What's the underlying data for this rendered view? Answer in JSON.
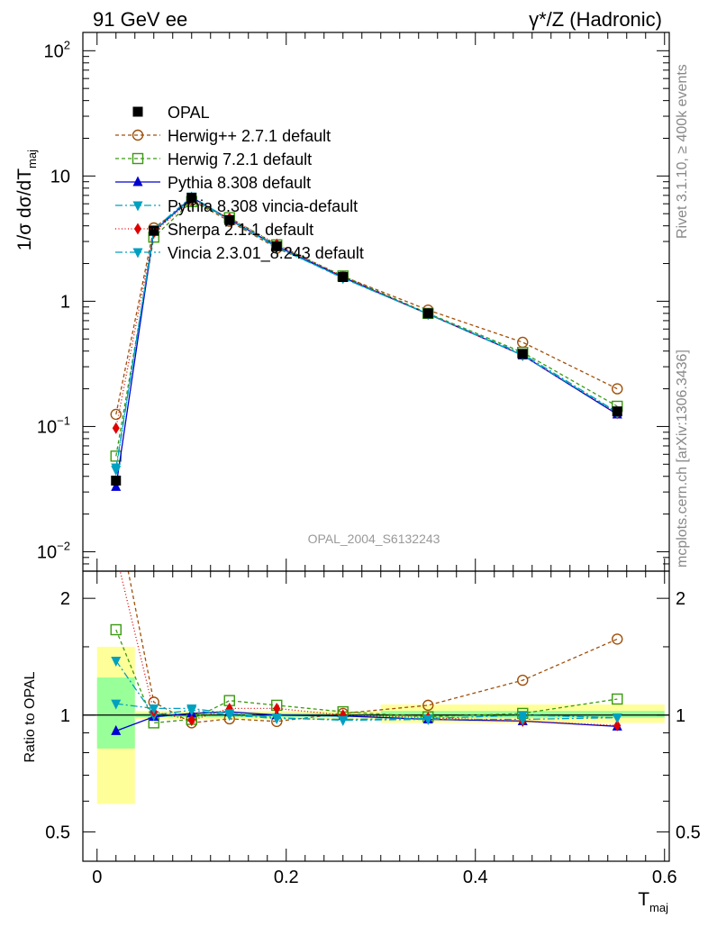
{
  "header": {
    "left_title": "91 GeV ee",
    "right_title": "γ*/Z (Hadronic)"
  },
  "side_labels": {
    "rivet": "Rivet 3.1.10, ≥ 400k events",
    "mcplots": "mcplots.cern.ch [arXiv:1306.3436]"
  },
  "watermark": "OPAL_2004_S6132243",
  "chart_data": [
    {
      "type": "line",
      "panel": "main",
      "yscale": "log",
      "ylabel": "1/σ dσ/dT",
      "ylabel_sub": "maj",
      "ylim": [
        0.007,
        140
      ],
      "xlim": [
        -0.015,
        0.605
      ],
      "ytick_labels": [
        {
          "value": 100,
          "base": "10",
          "exp": "2"
        },
        {
          "value": 10,
          "base": "10",
          "exp": ""
        },
        {
          "value": 1,
          "base": "1",
          "exp": ""
        },
        {
          "value": 0.1,
          "base": "10",
          "exp": "−1"
        },
        {
          "value": 0.01,
          "base": "10",
          "exp": "−2"
        }
      ],
      "x": [
        0.02,
        0.06,
        0.1,
        0.14,
        0.19,
        0.26,
        0.35,
        0.45,
        0.55
      ],
      "series": [
        {
          "name": "OPAL",
          "color": "#000000",
          "marker": "square-filled",
          "dash": "none",
          "values": [
            0.037,
            3.65,
            6.7,
            4.45,
            2.75,
            1.56,
            0.8,
            0.38,
            0.132
          ],
          "ratio": [
            1.0,
            1.0,
            1.0,
            1.0,
            1.0,
            1.0,
            1.0,
            1.0,
            1.0
          ]
        },
        {
          "name": "Herwig++ 2.7.1 default",
          "color": "#a0500a",
          "marker": "circle-open",
          "dash": "4,3",
          "values": [
            0.125,
            3.85,
            6.4,
            4.35,
            2.65,
            1.58,
            0.85,
            0.47,
            0.2
          ],
          "ratio": [
            3.4,
            1.08,
            0.955,
            0.978,
            0.963,
            1.01,
            1.06,
            1.23,
            1.57
          ]
        },
        {
          "name": "Herwig 7.2.1 default",
          "color": "#3a9a10",
          "marker": "square-open",
          "dash": "4,3",
          "values": [
            0.058,
            3.25,
            6.25,
            4.65,
            2.82,
            1.59,
            0.8,
            0.39,
            0.145
          ],
          "ratio": [
            1.66,
            0.955,
            0.975,
            1.09,
            1.06,
            1.02,
            0.99,
            1.01,
            1.1
          ]
        },
        {
          "name": "Pythia 8.308 default",
          "color": "#0000d0",
          "marker": "triangle-up",
          "dash": "none",
          "values": [
            0.033,
            3.62,
            6.75,
            4.5,
            2.75,
            1.55,
            0.79,
            0.37,
            0.125
          ],
          "ratio": [
            0.91,
            0.99,
            1.01,
            1.02,
            1.0,
            0.995,
            0.975,
            0.965,
            0.935
          ]
        },
        {
          "name": "Pythia 8.308 vincia-default",
          "color": "#00a0c0",
          "marker": "triangle-down",
          "dash": "8,3,2,3",
          "values": [
            0.047,
            3.6,
            6.65,
            4.45,
            2.7,
            1.53,
            0.79,
            0.38,
            0.13
          ],
          "ratio": [
            1.38,
            1.0,
            1.03,
            1.0,
            0.98,
            0.975,
            0.98,
            1.0,
            0.985
          ]
        },
        {
          "name": "Sherpa 2.1.1 default",
          "color": "#e00000",
          "marker": "diamond",
          "dash": "1,2.5",
          "values": [
            0.097,
            3.55,
            6.5,
            4.6,
            2.85,
            1.57,
            0.79,
            0.37,
            0.127
          ],
          "ratio": [
            2.6,
            1.02,
            0.97,
            1.04,
            1.04,
            1.0,
            0.985,
            0.965,
            0.94
          ]
        },
        {
          "name": "Vincia 2.3.01_8.243 default",
          "color": "#00a0c0",
          "marker": "triangle-down",
          "dash": "8,3,2,3",
          "values": [
            0.045,
            3.75,
            6.85,
            4.5,
            2.72,
            1.53,
            0.79,
            0.37,
            0.128
          ],
          "ratio": [
            1.07,
            1.04,
            1.04,
            1.01,
            0.985,
            0.97,
            0.975,
            0.975,
            0.985
          ]
        }
      ]
    },
    {
      "type": "line",
      "panel": "ratio",
      "yscale": "log",
      "ylabel": "Ratio to OPAL",
      "xlabel": "T",
      "xlabel_sub": "maj",
      "ylim": [
        0.42,
        2.35
      ],
      "xlim": [
        -0.015,
        0.605
      ],
      "yticks": [
        0.5,
        1,
        2
      ],
      "ytick_labels": [
        "0.5",
        "1",
        "2"
      ],
      "xticks": [
        0,
        0.2,
        0.4,
        0.6
      ],
      "xtick_labels": [
        "0",
        "0.2",
        "0.4",
        "0.6"
      ],
      "uncertainty_bands": [
        {
          "x0": 0.0,
          "x1": 0.04,
          "stat_lo": 0.82,
          "stat_hi": 1.25,
          "tot_lo": 0.59,
          "tot_hi": 1.5
        },
        {
          "x0": 0.04,
          "x1": 0.3,
          "stat_lo": 0.988,
          "stat_hi": 1.012,
          "tot_lo": 0.975,
          "tot_hi": 1.025
        },
        {
          "x0": 0.3,
          "x1": 0.6,
          "stat_lo": 0.985,
          "stat_hi": 1.025,
          "tot_lo": 0.955,
          "tot_hi": 1.065
        }
      ]
    }
  ]
}
